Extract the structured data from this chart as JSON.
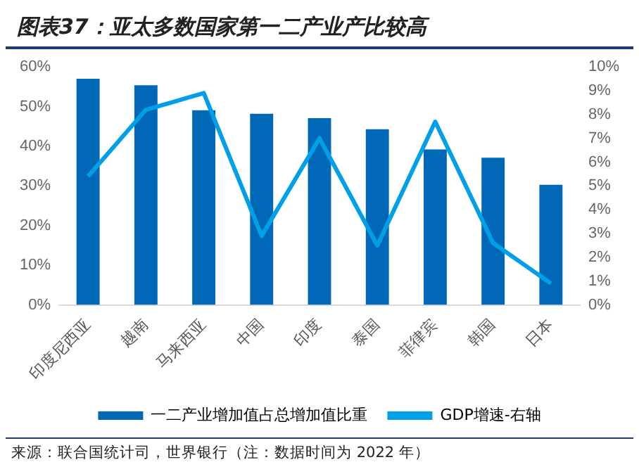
{
  "chart_data": {
    "type": "bar",
    "title": "图表37：亚太多数国家第一二产业产比较高",
    "categories": [
      "印度尼西亚",
      "越南",
      "马来西亚",
      "中国",
      "印度",
      "泰国",
      "菲律宾",
      "韩国",
      "日本"
    ],
    "series": [
      {
        "name": "一二产业增加值占总增加值比重",
        "color": "#0068b7",
        "values": [
          57,
          55.4,
          49.1,
          48.2,
          47.1,
          44.3,
          39.2,
          37.1,
          30.3
        ]
      },
      {
        "name": "GDP增速-右轴",
        "type": "line",
        "axis": "y2",
        "color": "#00a0e9",
        "values": [
          5.4,
          8.2,
          8.9,
          2.9,
          7.0,
          2.5,
          7.7,
          2.6,
          0.9
        ]
      }
    ],
    "ylim": [
      0,
      60
    ],
    "yticks": [
      {
        "value": 0,
        "label": "0%"
      },
      {
        "value": 10,
        "label": "10%"
      },
      {
        "value": 20,
        "label": "20%"
      },
      {
        "value": 30,
        "label": "30%"
      },
      {
        "value": 40,
        "label": "40%"
      },
      {
        "value": 50,
        "label": "50%"
      },
      {
        "value": 60,
        "label": "60%"
      }
    ],
    "y2lim": [
      0,
      10
    ],
    "y2ticks": [
      {
        "value": 0,
        "label": "0%"
      },
      {
        "value": 1,
        "label": "1%"
      },
      {
        "value": 2,
        "label": "2%"
      },
      {
        "value": 3,
        "label": "3%"
      },
      {
        "value": 4,
        "label": "4%"
      },
      {
        "value": 5,
        "label": "5%"
      },
      {
        "value": 6,
        "label": "6%"
      },
      {
        "value": 7,
        "label": "7%"
      },
      {
        "value": 8,
        "label": "8%"
      },
      {
        "value": 9,
        "label": "9%"
      },
      {
        "value": 10,
        "label": "10%"
      }
    ],
    "legend": "bottom",
    "grid": false,
    "marker": "none",
    "annotations": [
      "来源：联合国统计司，世界银行（注：数据时间为 2022 年）"
    ]
  }
}
